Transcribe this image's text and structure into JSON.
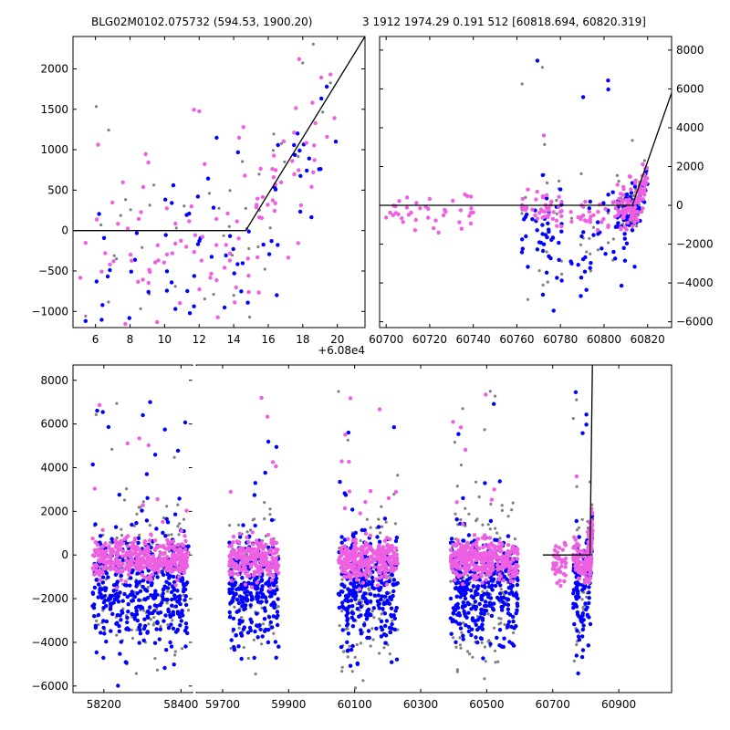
{
  "titles": {
    "left": "BLG02M0102.075732 (594.53, 1900.20)",
    "right": "3 1912 1974.29 0.191 512 [60818.694, 60820.319]"
  },
  "colors": {
    "blue": "#0000ff",
    "pink": "#ee5fe2",
    "gray": "#808080",
    "line": "#000000"
  },
  "chart_data": [
    {
      "type": "scatter",
      "panel": "top-left zoom",
      "x_offset_label": "+6.08e4",
      "xlim": [
        60804.7,
        60821.6
      ],
      "ylim": [
        -1200,
        2400
      ],
      "xtick_values": [
        60806,
        60808,
        60810,
        60812,
        60814,
        60816,
        60818,
        60820
      ],
      "xticks": [
        "6",
        "8",
        "10",
        "12",
        "14",
        "16",
        "18",
        "20"
      ],
      "yticks": [
        -1000,
        -500,
        0,
        500,
        1000,
        1500,
        2000
      ],
      "model": {
        "x": [
          60804.7,
          60814.7,
          60821.6
        ],
        "y": [
          0,
          0,
          2400
        ]
      }
    },
    {
      "type": "scatter",
      "panel": "top-right",
      "xlim": [
        60697,
        60831
      ],
      "ylim": [
        -6300,
        8700
      ],
      "xticks": [
        60700,
        60720,
        60740,
        60760,
        60780,
        60800,
        60820
      ],
      "yticks": [
        -6000,
        -4000,
        -2000,
        0,
        2000,
        4000,
        6000,
        8000
      ],
      "y_axis_side": "right",
      "model": {
        "x": [
          60697,
          60813,
          60831
        ],
        "y": [
          0,
          0,
          5800
        ]
      }
    },
    {
      "type": "scatter",
      "panel": "bottom full light curve (broken x axis)",
      "ylim": [
        -6300,
        8700
      ],
      "yticks": [
        -6000,
        -4000,
        -2000,
        0,
        2000,
        4000,
        6000,
        8000
      ],
      "segments": [
        {
          "xlim": [
            58120,
            58430
          ],
          "xticks": [
            58200,
            58400
          ]
        },
        {
          "xlim": [
            59620,
            61060
          ],
          "xticks": [
            59700,
            59900,
            60100,
            60300,
            60500,
            60700,
            60900
          ]
        }
      ],
      "model": {
        "x": [
          60670,
          60813,
          60820
        ],
        "y": [
          0,
          0,
          8700
        ]
      }
    }
  ]
}
